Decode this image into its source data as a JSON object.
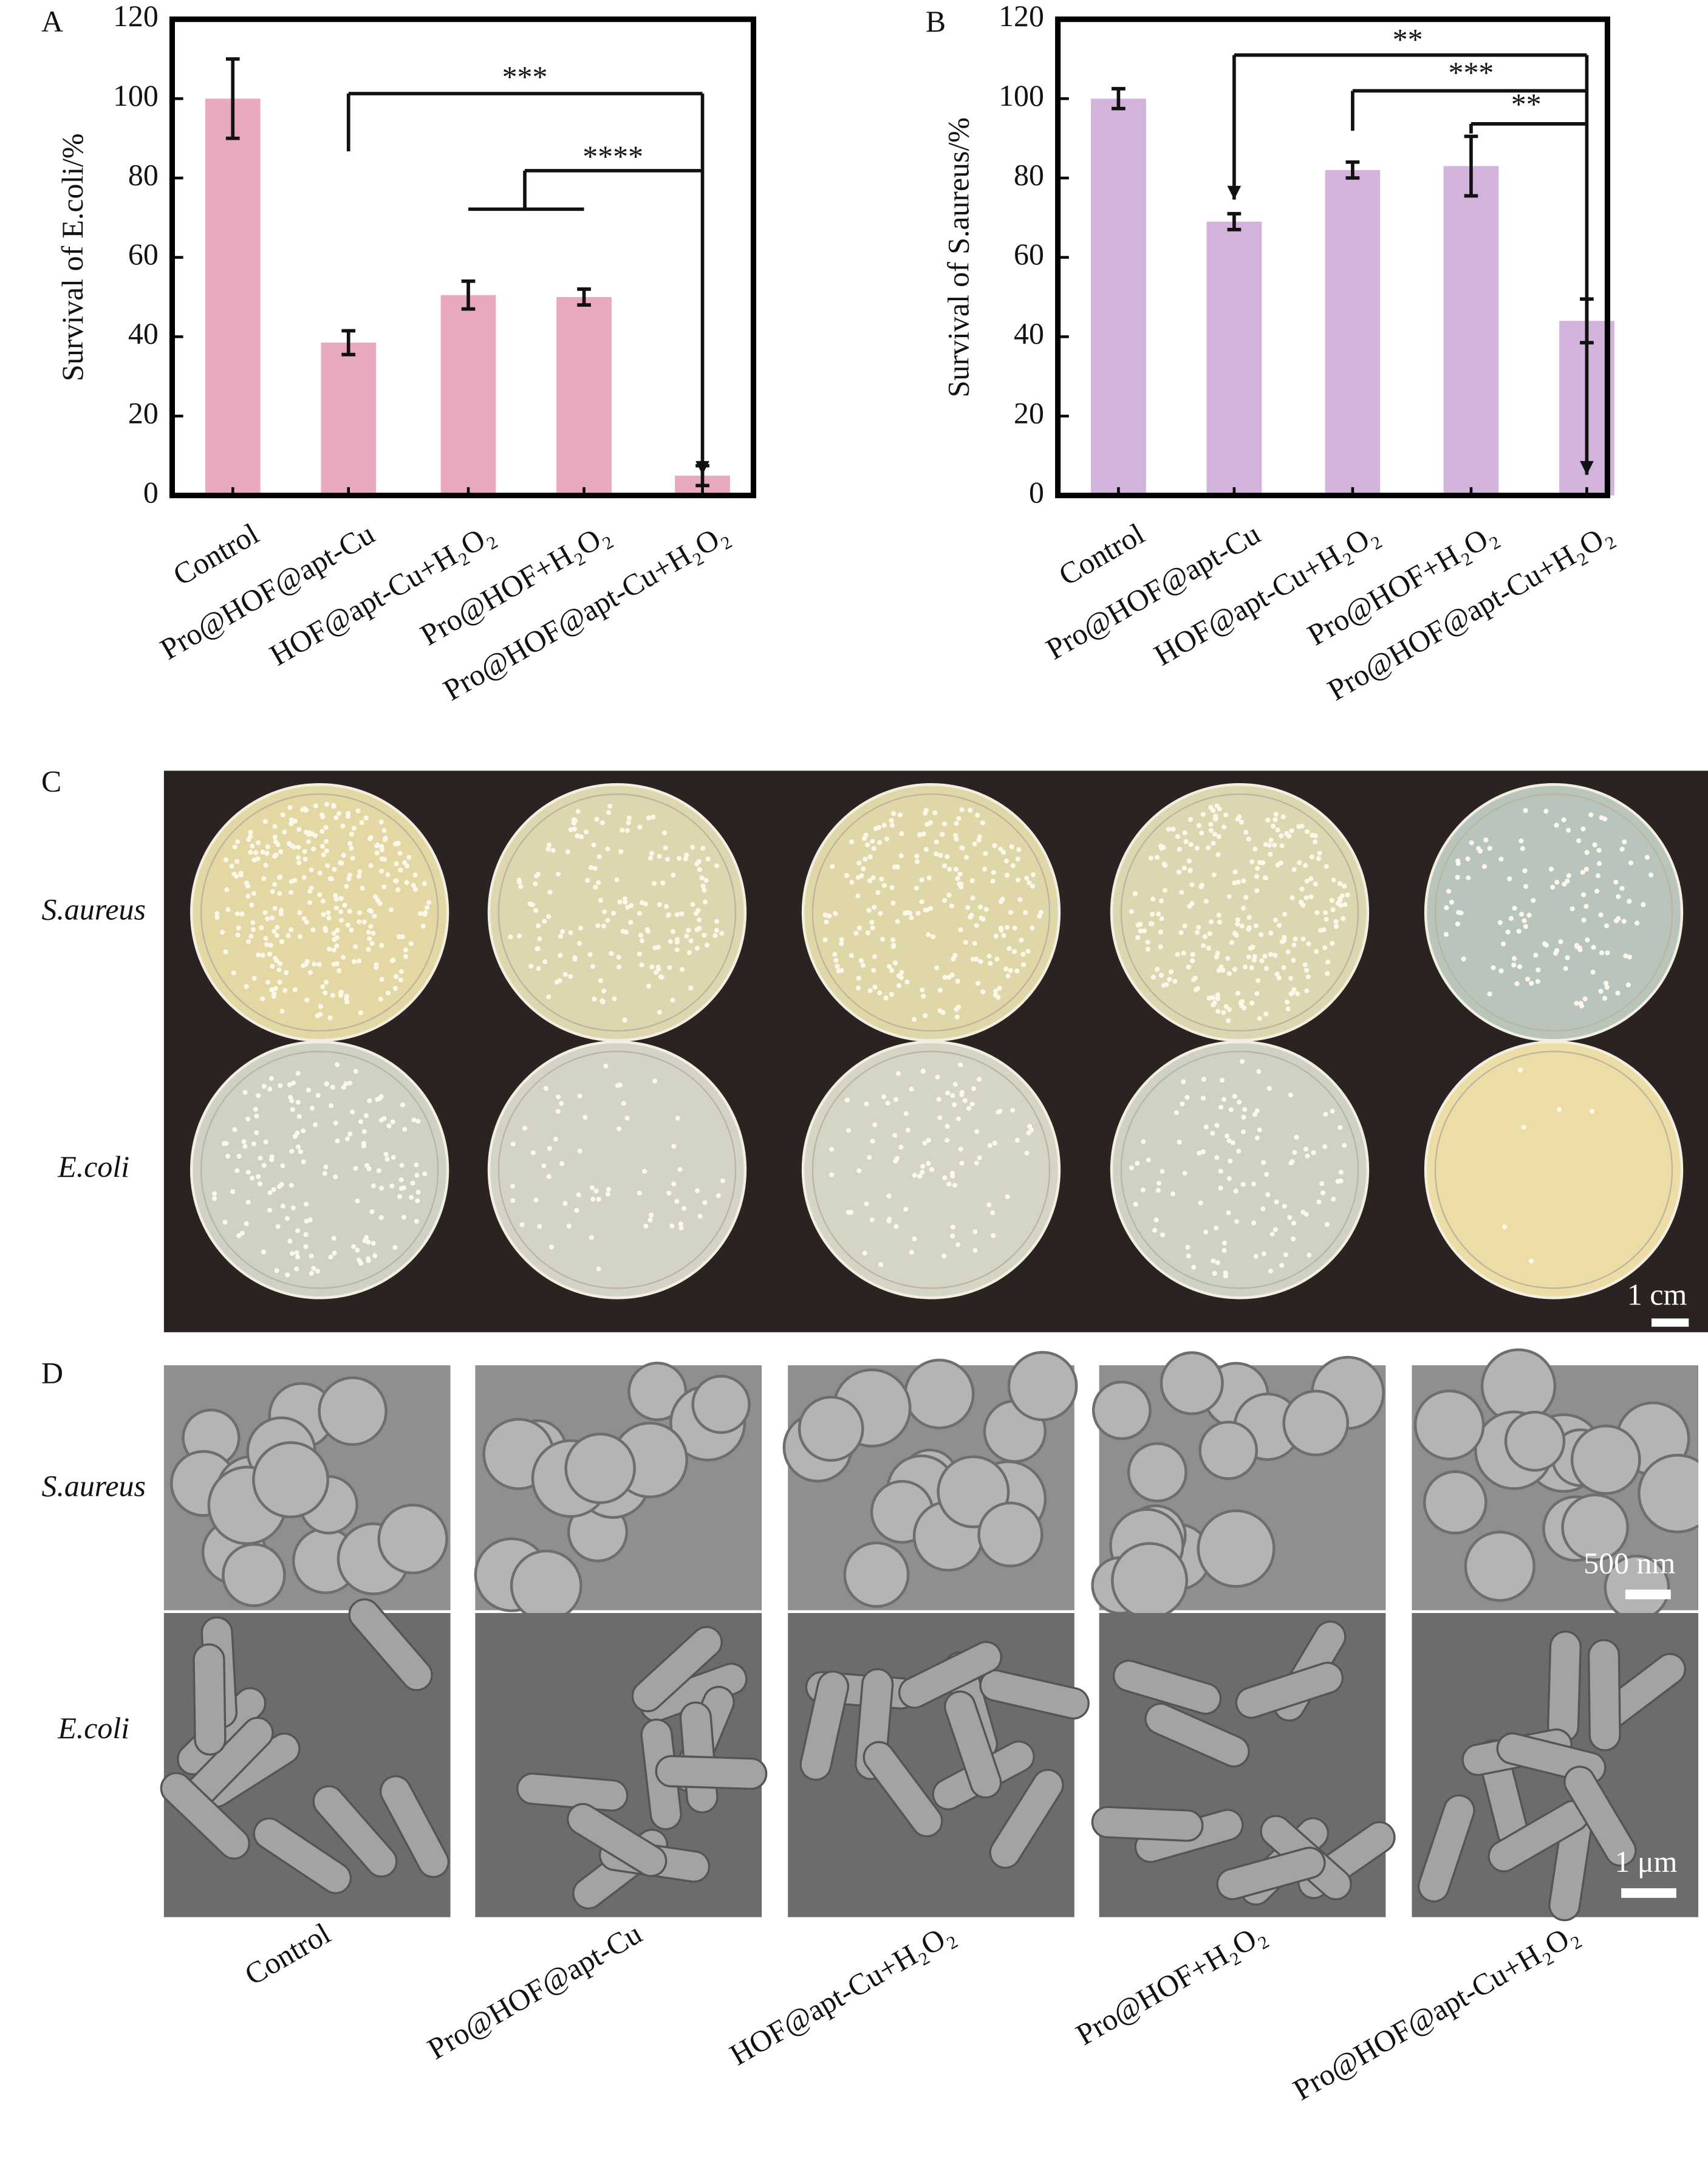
{
  "chart_data": [
    {
      "type": "bar",
      "panel_label": "A",
      "ylabel": "Survival of E.coli/%",
      "categories": [
        "Control",
        "Pro@HOF@apt-Cu",
        "HOF@apt-Cu+H₂O₂",
        "Pro@HOF+H₂O₂",
        "Pro@HOF@apt-Cu+H₂O₂"
      ],
      "values": [
        100,
        38.5,
        50.5,
        50,
        5
      ],
      "errors": [
        10,
        3,
        3.5,
        2,
        2.5
      ],
      "color": "#e8a9bd",
      "ylim": [
        0,
        120
      ],
      "yticks": [
        0,
        20,
        40,
        60,
        80,
        100,
        120
      ],
      "annotations": [
        "***",
        "****"
      ]
    },
    {
      "type": "bar",
      "panel_label": "B",
      "ylabel": "Survival of S.aureus/%",
      "categories": [
        "Control",
        "Pro@HOF@apt-Cu",
        "HOF@apt-Cu+H₂O₂",
        "Pro@HOF+H₂O₂",
        "Pro@HOF@apt-Cu+H₂O₂"
      ],
      "values": [
        100,
        69,
        82,
        83,
        44
      ],
      "errors": [
        2.5,
        2,
        2,
        7.5,
        5.5
      ],
      "color": "#d1b3dc",
      "ylim": [
        0,
        120
      ],
      "yticks": [
        0,
        20,
        40,
        60,
        80,
        100,
        120
      ],
      "annotations": [
        "**",
        "***",
        "**"
      ]
    }
  ],
  "panel_c": {
    "label": "C",
    "rows": [
      "S.aureus",
      "E.coli"
    ],
    "scale_bar": "1 cm"
  },
  "panel_d": {
    "label": "D",
    "rows": [
      "S.aureus",
      "E.coli"
    ],
    "scale_bars": [
      "500 nm",
      "1 μm"
    ],
    "categories": [
      "Control",
      "Pro@HOF@apt-Cu",
      "HOF@apt-Cu+H₂O₂",
      "Pro@HOF+H₂O₂",
      "Pro@HOF@apt-Cu+H₂O₂"
    ]
  }
}
